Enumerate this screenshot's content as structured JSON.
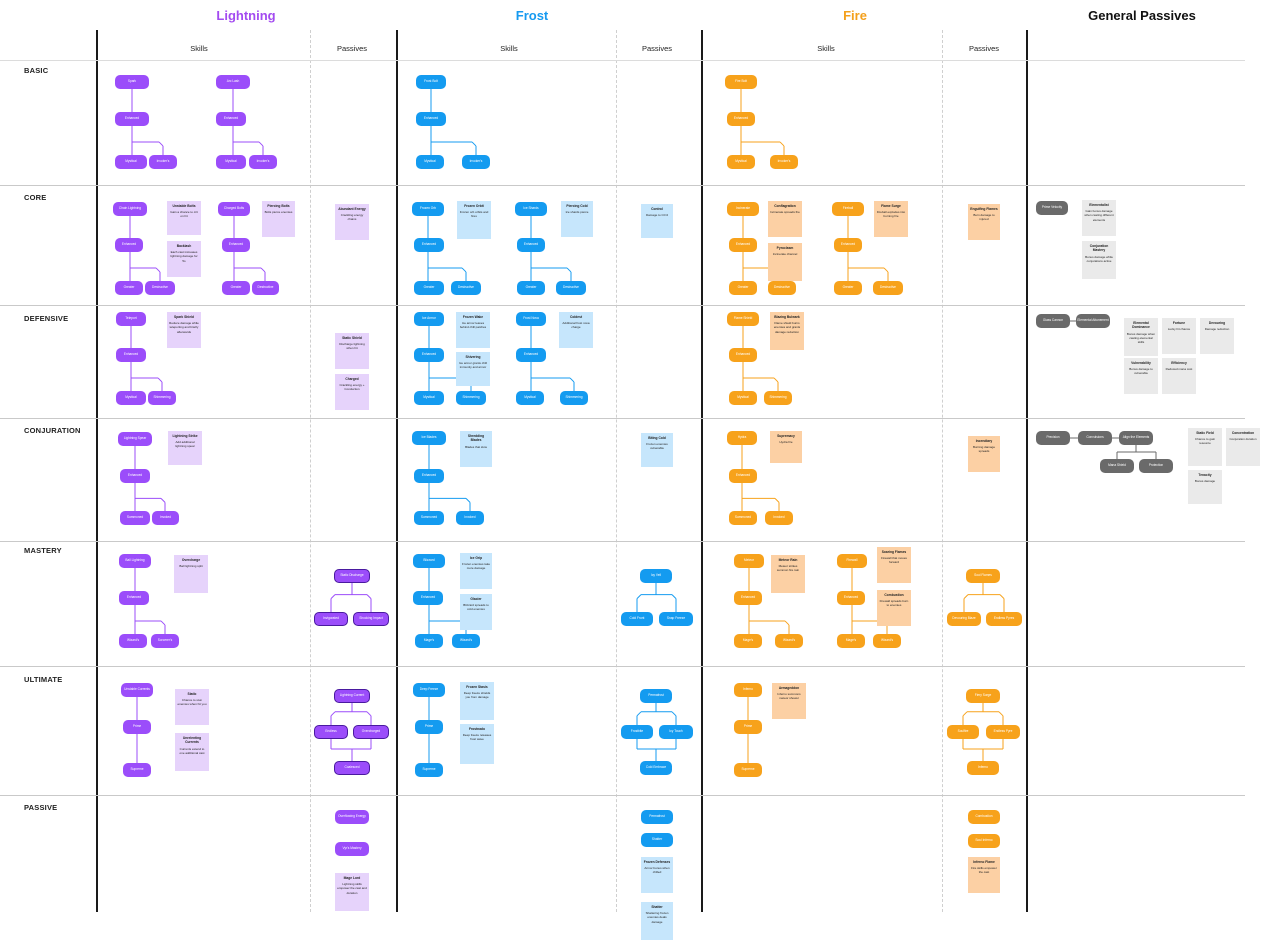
{
  "columns": [
    {
      "title": "Lightning",
      "color": "#a34bf0",
      "skills": "Skills",
      "passives": "Passives"
    },
    {
      "title": "Frost",
      "color": "#169af0",
      "skills": "Skills",
      "passives": "Passives"
    },
    {
      "title": "Fire",
      "color": "#f7a41e",
      "skills": "Skills",
      "passives": "Passives"
    },
    {
      "title": "General Passives",
      "color": "#1a1a1a"
    }
  ],
  "rows": [
    "BASIC",
    "CORE",
    "DEFENSIVE",
    "CONJURATION",
    "MASTERY",
    "ULTIMATE",
    "PASSIVE"
  ],
  "colors": {
    "lightning": "#9b4dfa",
    "lightning_note": "#e6d3fb",
    "frost": "#149bf0",
    "frost_note": "#c6e6fc",
    "fire": "#f7a21b",
    "fire_note": "#fcd0a4",
    "general": "#6a6a6a",
    "general_note": "#eaeaea"
  },
  "nodes": {
    "l_basic_1": "Spark",
    "l_basic_1a": "Enhanced",
    "l_basic_1b": "Mystical",
    "l_basic_1c": "Invoker's",
    "l_basic_2": "Arc Lash",
    "l_basic_2a": "Enhanced",
    "l_basic_2b": "Mystical",
    "l_basic_2c": "Invoker's",
    "f_basic_1": "Frost Bolt",
    "f_basic_1a": "Enhanced",
    "f_basic_1b": "Mystical",
    "f_basic_1c": "Invoker's",
    "r_basic_1": "Fire Bolt",
    "r_basic_1a": "Enhanced",
    "r_basic_1b": "Mystical",
    "r_basic_1c": "Invoker's",
    "l_core_1": "Chain Lightning",
    "l_core_1a": "Enhanced",
    "l_core_1b": "Greater",
    "l_core_1c": "Destructive",
    "l_core_2": "Charged Bolts",
    "l_core_2a": "Enhanced",
    "l_core_2b": "Greater",
    "l_core_2c": "Destructive",
    "f_core_1": "Frozen Orb",
    "f_core_1a": "Enhanced",
    "f_core_1b": "Greater",
    "f_core_1c": "Destructive",
    "f_core_2": "Ice Shards",
    "f_core_2a": "Enhanced",
    "f_core_2b": "Greater",
    "f_core_2c": "Destructive",
    "r_core_1": "Incinerate",
    "r_core_1a": "Enhanced",
    "r_core_1b": "Greater",
    "r_core_1c": "Destructive",
    "r_core_2": "Fireball",
    "r_core_2a": "Enhanced",
    "r_core_2b": "Greater",
    "r_core_2c": "Destructive",
    "l_def_1": "Teleport",
    "l_def_1a": "Enhanced",
    "l_def_1b": "Mystical",
    "l_def_1c": "Shimmering",
    "f_def_1": "Ice Armor",
    "f_def_1a": "Enhanced",
    "f_def_1b": "Mystical",
    "f_def_1c": "Shimmering",
    "f_def_2": "Frost Nova",
    "f_def_2a": "Enhanced",
    "f_def_2b": "Mystical",
    "f_def_2c": "Shimmering",
    "r_def_1": "Flame Shield",
    "r_def_1a": "Enhanced",
    "r_def_1b": "Mystical",
    "r_def_1c": "Shimmering",
    "l_conj_1": "Lightning Spear",
    "l_conj_1a": "Enhanced",
    "l_conj_1b": "Summoned",
    "l_conj_1c": "Invoked",
    "f_conj_1": "Ice Blades",
    "f_conj_1a": "Enhanced",
    "f_conj_1b": "Summoned",
    "f_conj_1c": "Invoked",
    "r_conj_1": "Hydra",
    "r_conj_1a": "Enhanced",
    "r_conj_1b": "Summoned",
    "r_conj_1c": "Invoked",
    "l_mas_1": "Ball Lightning",
    "l_mas_1a": "Enhanced",
    "l_mas_1b": "Wizard's",
    "l_mas_1c": "Sorcerer's",
    "f_mas_1": "Blizzard",
    "f_mas_1a": "Enhanced",
    "f_mas_1b": "Mage's",
    "f_mas_1c": "Wizard's",
    "r_mas_1": "Meteor",
    "r_mas_1a": "Enhanced",
    "r_mas_1b": "Mage's",
    "r_mas_1c": "Wizard's",
    "r_mas_2": "Firewall",
    "r_mas_2a": "Enhanced",
    "r_mas_2b": "Mage's",
    "r_mas_2c": "Wizard's",
    "l_ult_1": "Unstable Currents",
    "l_ult_1a": "Prime",
    "l_ult_1b": "Supreme",
    "f_ult_1": "Deep Freeze",
    "f_ult_1a": "Prime",
    "f_ult_1b": "Supreme",
    "r_ult_1": "Inferno",
    "r_ult_1a": "Prime",
    "r_ult_1b": "Supreme",
    "lp_mas": "Static Discharge",
    "lp_mas_a": "Invigorated",
    "lp_mas_b": "Shocking Impact",
    "lp_ult": "Lightning Current",
    "lp_ult_a": "Endless",
    "lp_ult_b": "Overcharged",
    "lp_ult_c": "Coalesced",
    "lp_pas_1": "Overflowing Energy",
    "lp_pas_2": "Vyr's Mastery",
    "fp_mas": "Icy Veil",
    "fp_mas_a": "Cold Front",
    "fp_mas_b": "Snap Freeze",
    "fp_ult": "Permafrost",
    "fp_ult_a": "Frostbite",
    "fp_ult_b": "Icy Touch",
    "fp_ult_c": "Cold Embrace",
    "fp_pas_1": "Permafrost",
    "fp_pas_2": "Shatter",
    "rp_mas": "Soul Flames",
    "rp_mas_a": "Devouring Blaze",
    "rp_mas_b": "Endless Pyres",
    "rp_ult": "Fiery Surge",
    "rp_ult_a": "Soulfire",
    "rp_ult_b": "Endless Pyre",
    "rp_ult_c": "Inferno",
    "rp_pas_1": "Combustion",
    "rp_pas_2": "Soul Inferno",
    "g_core_1": "Prime Velocity",
    "g_def_1": "Glass Cannon",
    "g_def_2": "Elemental Attunement",
    "g_conj_1": "Precision",
    "g_conj_2": "Convulsions",
    "g_conj_3": "Align the Elements",
    "g_conj_4": "Mana Shield",
    "g_conj_5": "Protection"
  },
  "notes": {
    "l_core_n1": {
      "title": "Unstable Bolts",
      "text": "Gain a chance to crit on hit"
    },
    "l_core_n2": {
      "title": "Backlash",
      "text": "Each cast increases lightning damage for 5s"
    },
    "l_core_n3": {
      "title": "Piercing Bolts",
      "text": "Bolts pierce enemies"
    },
    "l_def_n1": {
      "title": "Spark Shield",
      "text": "Reduce damage while teleporting and briefly afterwards"
    },
    "l_conj_n1": {
      "title": "Lightning Strike",
      "text": "Add additional lightning spear"
    },
    "l_mas_n1": {
      "title": "Overcharge",
      "text": "Ball lightning split"
    },
    "l_ult_n1": {
      "title": "Static",
      "text": "Chance to stun enemies when hit you"
    },
    "l_ult_n2": {
      "title": "Unrelenting Currents",
      "text": "Currents extend to one additional cast"
    },
    "lp_core_n": {
      "title": "Abundant Energy",
      "text": "Crackling energy chains"
    },
    "lp_def_n1": {
      "title": "Static Shield",
      "text": "Discharge lightning when hit"
    },
    "lp_def_n2": {
      "title": "Charged",
      "text": "Crackling energy + Conduction"
    },
    "lp_pas_n": {
      "title": "Mage Lord",
      "text": "Lightning skills empower the cast and duration"
    },
    "f_core_n1": {
      "title": "Frozen Orbit",
      "text": "Frozen orb orbits and fires"
    },
    "f_core_n2": {
      "title": "Piercing Cold",
      "text": "Ice shards pierce"
    },
    "f_def_n1": {
      "title": "Frozen Wake",
      "text": "Ice armor leaves behind chill patches"
    },
    "f_def_n2": {
      "title": "Coldest",
      "text": "Additional frost nova charge"
    },
    "f_def_n3": {
      "title": "Shivering",
      "text": "Ice armor grants chill immunity and armor"
    },
    "f_conj_n1": {
      "title": "Shredding Blades",
      "text": "Blades that slow"
    },
    "f_mas_n1": {
      "title": "Ice Grip",
      "text": "Frozen enemies take more damage"
    },
    "f_mas_n2": {
      "title": "Glacier",
      "text": "Blizzard spreads to cold enemies"
    },
    "f_ult_n1": {
      "title": "Frozen Stasis",
      "text": "Deep freeze shields you from damage"
    },
    "f_ult_n2": {
      "title": "Frostnado",
      "text": "Deep freeze releases frost wave"
    },
    "fp_core_n": {
      "title": "Control",
      "text": "Damage to CC'd"
    },
    "fp_conj_n": {
      "title": "Biting Cold",
      "text": "Frozen enemies vulnerable"
    },
    "fp_pas_n1": {
      "title": "Frozen Defenses",
      "text": "Armor bonus when chilled"
    },
    "fp_pas_n2": {
      "title": "Shatter",
      "text": "Shattering frozen enemies deals damage"
    },
    "r_core_n1": {
      "title": "Conflagration",
      "text": "Incinerate spreads fire"
    },
    "r_core_n2": {
      "title": "Flame Surge",
      "text": "Fireball explodes into burning fire"
    },
    "r_core_n3": {
      "title": "Pyroclasm",
      "text": "Incinerate channel"
    },
    "r_def_n1": {
      "title": "Blazing Bulwark",
      "text": "Flame shield burns enemies and grants damage reduction"
    },
    "r_conj_n1": {
      "title": "Supremacy",
      "text": "Hydra fire"
    },
    "r_mas_n1": {
      "title": "Meteor Rain",
      "text": "Meteor strikes summon fire rain"
    },
    "r_mas_n2": {
      "title": "Soaring Flames",
      "text": "Firewall that moves forward"
    },
    "r_mas_n3": {
      "title": "Combustion",
      "text": "Firewall spreads burn to enemies"
    },
    "r_ult_n1": {
      "title": "Armageddon",
      "text": "Inferno summons meteor shower"
    },
    "rp_core_n": {
      "title": "Engulfing Flames",
      "text": "Burn damage to injured"
    },
    "rp_conj_n": {
      "title": "Incendiary",
      "text": "Burning damage spreads"
    },
    "rp_pas_n": {
      "title": "Inferno Flame",
      "text": "Fire skills empower the cast"
    },
    "g_core_n1": {
      "title": "Elementalist",
      "text": "Gain bonus damage when casting different elements"
    },
    "g_core_n2": {
      "title": "Conjuration Mastery",
      "text": "Bonus damage while conjurations active"
    },
    "g_def_n1": {
      "title": "Elemental Dominance",
      "text": "Bonus damage when casting elemental skills"
    },
    "g_def_n2": {
      "title": "Fortune",
      "text": "Lucky hit chance"
    },
    "g_def_n3": {
      "title": "Devouring",
      "text": "Damage reduction"
    },
    "g_def_n4": {
      "title": "Vulnerability",
      "text": "Bonus damage to vulnerable"
    },
    "g_def_n5": {
      "title": "Efficiency",
      "text": "Reduced mana cost"
    },
    "g_conj_n1": {
      "title": "Static Field",
      "text": "Chance to gain resource"
    },
    "g_conj_n2": {
      "title": "Concentration",
      "text": "Conjuration duration"
    },
    "g_conj_n3": {
      "title": "Tenacity",
      "text": "Bonus damage"
    }
  }
}
